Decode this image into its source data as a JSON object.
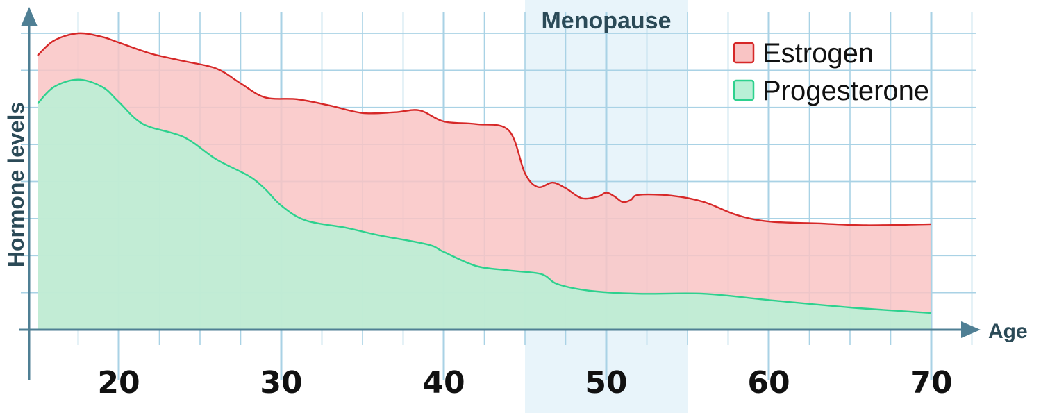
{
  "chart_data": {
    "type": "area",
    "title": "",
    "xlabel": "Age",
    "ylabel": "Hormone levels",
    "xlim": [
      15,
      70
    ],
    "ylim": [
      0,
      8
    ],
    "grid": true,
    "legend_position": "top-right",
    "xticks": [
      20,
      30,
      40,
      50,
      60,
      70
    ],
    "shaded_region": {
      "label": "Menopause",
      "x": [
        45,
        55
      ],
      "color": "#e8f4fa"
    },
    "series": [
      {
        "name": "Estrogen",
        "color_fill": "#f9c4c4",
        "color_line": "#d62828",
        "points": [
          [
            15,
            7.4
          ],
          [
            16,
            7.8
          ],
          [
            17.5,
            8.0
          ],
          [
            19,
            7.9
          ],
          [
            20,
            7.75
          ],
          [
            22,
            7.45
          ],
          [
            24,
            7.25
          ],
          [
            26,
            7.05
          ],
          [
            27.5,
            6.65
          ],
          [
            29,
            6.27
          ],
          [
            31,
            6.22
          ],
          [
            33,
            6.05
          ],
          [
            35,
            5.85
          ],
          [
            37,
            5.87
          ],
          [
            38.5,
            5.92
          ],
          [
            40,
            5.62
          ],
          [
            42,
            5.55
          ],
          [
            44,
            5.38
          ],
          [
            45,
            4.22
          ],
          [
            45.8,
            3.85
          ],
          [
            46.7,
            3.97
          ],
          [
            47.5,
            3.82
          ],
          [
            48.5,
            3.55
          ],
          [
            49.5,
            3.6
          ],
          [
            50,
            3.7
          ],
          [
            50.5,
            3.6
          ],
          [
            51,
            3.45
          ],
          [
            51.5,
            3.5
          ],
          [
            52,
            3.64
          ],
          [
            54,
            3.62
          ],
          [
            56,
            3.45
          ],
          [
            58,
            3.1
          ],
          [
            60,
            2.92
          ],
          [
            63,
            2.87
          ],
          [
            66,
            2.82
          ],
          [
            70,
            2.85
          ]
        ]
      },
      {
        "name": "Progesterone",
        "color_fill": "#b9f0d6",
        "color_line": "#2dd18e",
        "points": [
          [
            15,
            6.1
          ],
          [
            16,
            6.55
          ],
          [
            17.5,
            6.75
          ],
          [
            19,
            6.55
          ],
          [
            20,
            6.15
          ],
          [
            21.5,
            5.55
          ],
          [
            24,
            5.2
          ],
          [
            26,
            4.6
          ],
          [
            28,
            4.15
          ],
          [
            29,
            3.8
          ],
          [
            30,
            3.35
          ],
          [
            31.5,
            2.95
          ],
          [
            34,
            2.75
          ],
          [
            36,
            2.55
          ],
          [
            39,
            2.3
          ],
          [
            40,
            2.1
          ],
          [
            42,
            1.72
          ],
          [
            44,
            1.6
          ],
          [
            46,
            1.5
          ],
          [
            47,
            1.23
          ],
          [
            49,
            1.05
          ],
          [
            52,
            0.97
          ],
          [
            56,
            0.97
          ],
          [
            60,
            0.8
          ],
          [
            65,
            0.6
          ],
          [
            70,
            0.45
          ]
        ]
      }
    ]
  }
}
